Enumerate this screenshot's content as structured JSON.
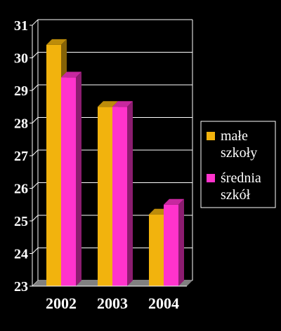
{
  "chart_data": {
    "type": "bar",
    "categories": [
      "2002",
      "2003",
      "2004"
    ],
    "series": [
      {
        "name": "małe szkoły",
        "legend_lines": [
          "małe",
          "szkoły"
        ],
        "color": "#f2b30d",
        "values": [
          30.4,
          28.5,
          25.2
        ]
      },
      {
        "name": "średnia szkół",
        "legend_lines": [
          "średnia",
          "szkół"
        ],
        "color": "#ff33cc",
        "values": [
          29.4,
          28.5,
          25.5
        ]
      }
    ],
    "ylim": [
      23,
      31
    ],
    "yticks": [
      "23",
      "24",
      "25",
      "26",
      "27",
      "28",
      "29",
      "30",
      "31"
    ],
    "grid": true,
    "legend_position": "right",
    "background": "#000000",
    "gridline_color": "#ffffff",
    "floor_color": "#808080"
  }
}
